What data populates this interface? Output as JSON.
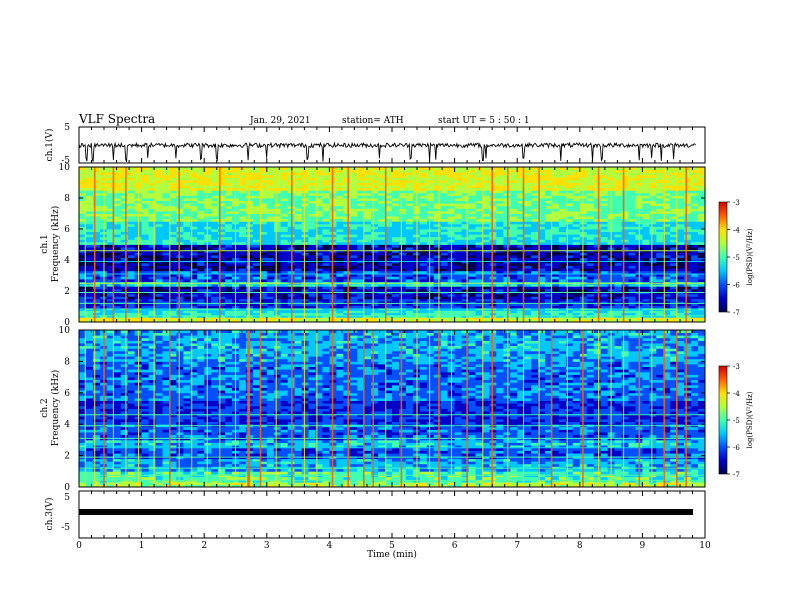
{
  "header": {
    "title": "VLF Spectra",
    "date": "Jan. 29, 2021",
    "station": "station= ATH",
    "start": "start  UT  =   5  : 50 : 1"
  },
  "colors": {
    "spectrogram_stops": [
      "#00004a",
      "#0000c8",
      "#0050ff",
      "#00c8ff",
      "#40ffb0",
      "#b0ff40",
      "#ffe000",
      "#ff6000",
      "#d00000"
    ],
    "trace": "#000000"
  },
  "chart_data": [
    {
      "type": "line",
      "panel": "ch1-waveform",
      "ylabel": "ch.1(V)",
      "ylim": [
        -5,
        5
      ],
      "yticks": [
        "5",
        "-5"
      ],
      "xlim": [
        0,
        10
      ],
      "baseline": 0,
      "typical_range": [
        -1,
        0.6
      ],
      "bursts_min": [
        0.12,
        0.22,
        0.55,
        0.75,
        1.1,
        1.55,
        1.95,
        2.2,
        2.7,
        3.0,
        3.65,
        3.9,
        4.8,
        5.3,
        5.6,
        5.7,
        6.45,
        6.5,
        7.1,
        7.7,
        8.2,
        8.35,
        8.95,
        9.15,
        9.3,
        9.5
      ]
    },
    {
      "type": "heatmap",
      "panel": "ch1-spectrogram",
      "ylabel": "ch.1",
      "ylabel2": "Frequency (kHz)",
      "ylim": [
        0,
        10
      ],
      "yticks": [
        "0",
        "2",
        "4",
        "6",
        "8",
        "10"
      ],
      "xlim": [
        0,
        10
      ],
      "colorbar": {
        "label": "log(PSD)(V²/Hz)",
        "range": [
          -7,
          -3
        ],
        "ticks": [
          "-3",
          "-4",
          "-5",
          "-6",
          "-7"
        ]
      },
      "band_levels": [
        {
          "f": [
            0.0,
            0.3
          ],
          "level": -4.3
        },
        {
          "f": [
            0.3,
            0.9
          ],
          "level": -5.2
        },
        {
          "f": [
            0.9,
            1.5
          ],
          "level": -6.2
        },
        {
          "f": [
            1.5,
            2.3
          ],
          "level": -6.5
        },
        {
          "f": [
            2.3,
            2.6
          ],
          "level": -5.4
        },
        {
          "f": [
            2.6,
            3.3
          ],
          "level": -6.0
        },
        {
          "f": [
            3.3,
            5.0
          ],
          "level": -6.6
        },
        {
          "f": [
            5.0,
            6.5
          ],
          "level": -5.3
        },
        {
          "f": [
            6.5,
            8.5
          ],
          "level": -4.8
        },
        {
          "f": [
            8.5,
            10.0
          ],
          "level": -4.3
        }
      ],
      "spherics_min": [
        0.1,
        0.25,
        0.4,
        0.55,
        0.75,
        0.95,
        1.2,
        1.45,
        1.6,
        1.8,
        2.05,
        2.25,
        2.5,
        2.7,
        2.72,
        2.9,
        3.15,
        3.4,
        3.6,
        3.8,
        4.05,
        4.3,
        4.55,
        4.7,
        4.9,
        5.15,
        5.4,
        5.6,
        5.75,
        5.95,
        6.2,
        6.45,
        6.6,
        6.85,
        7.1,
        7.35,
        7.55,
        7.8,
        8.05,
        8.3,
        8.5,
        8.7,
        8.95,
        9.15,
        9.35,
        9.55,
        9.7
      ]
    },
    {
      "type": "heatmap",
      "panel": "ch2-spectrogram",
      "ylabel": "ch.2",
      "ylabel2": "Frequency (kHz)",
      "ylim": [
        0,
        10
      ],
      "yticks": [
        "0",
        "2",
        "4",
        "6",
        "8",
        "10"
      ],
      "xlim": [
        0,
        10
      ],
      "colorbar": {
        "label": "log(PSD)(V²/Hz)",
        "range": [
          -7,
          -3
        ],
        "ticks": [
          "-3",
          "-4",
          "-5",
          "-6",
          "-7"
        ]
      },
      "band_levels": [
        {
          "f": [
            0.0,
            0.3
          ],
          "level": -4.5
        },
        {
          "f": [
            0.3,
            1.0
          ],
          "level": -5.0
        },
        {
          "f": [
            1.0,
            1.8
          ],
          "level": -5.6
        },
        {
          "f": [
            1.8,
            2.5
          ],
          "level": -6.0
        },
        {
          "f": [
            2.5,
            3.0
          ],
          "level": -5.5
        },
        {
          "f": [
            3.0,
            4.0
          ],
          "level": -6.0
        },
        {
          "f": [
            4.0,
            5.5
          ],
          "level": -6.2
        },
        {
          "f": [
            5.5,
            8.0
          ],
          "level": -5.9
        },
        {
          "f": [
            8.0,
            10.0
          ],
          "level": -5.6
        }
      ],
      "spherics_min": [
        0.1,
        0.25,
        0.4,
        0.55,
        0.75,
        0.95,
        1.2,
        1.45,
        1.6,
        1.8,
        2.05,
        2.25,
        2.5,
        2.7,
        2.72,
        2.9,
        3.15,
        3.4,
        3.6,
        3.8,
        4.05,
        4.3,
        4.55,
        4.7,
        4.9,
        5.15,
        5.4,
        5.6,
        5.75,
        5.95,
        6.2,
        6.45,
        6.6,
        6.85,
        7.1,
        7.35,
        7.55,
        7.8,
        8.05,
        8.3,
        8.5,
        8.7,
        8.95,
        9.15,
        9.35,
        9.55,
        9.7
      ]
    },
    {
      "type": "line",
      "panel": "ch3-waveform",
      "ylabel": "ch.3(V)",
      "ylim": [
        -5,
        5
      ],
      "yticks": [
        "5",
        "-5"
      ],
      "xlim": [
        0,
        10
      ],
      "baseline": 0,
      "typical_range": [
        -0.3,
        0.3
      ],
      "xlabel": "Time (min)",
      "xticks": [
        "0",
        "1",
        "2",
        "3",
        "4",
        "5",
        "6",
        "7",
        "8",
        "9",
        "10"
      ]
    }
  ]
}
